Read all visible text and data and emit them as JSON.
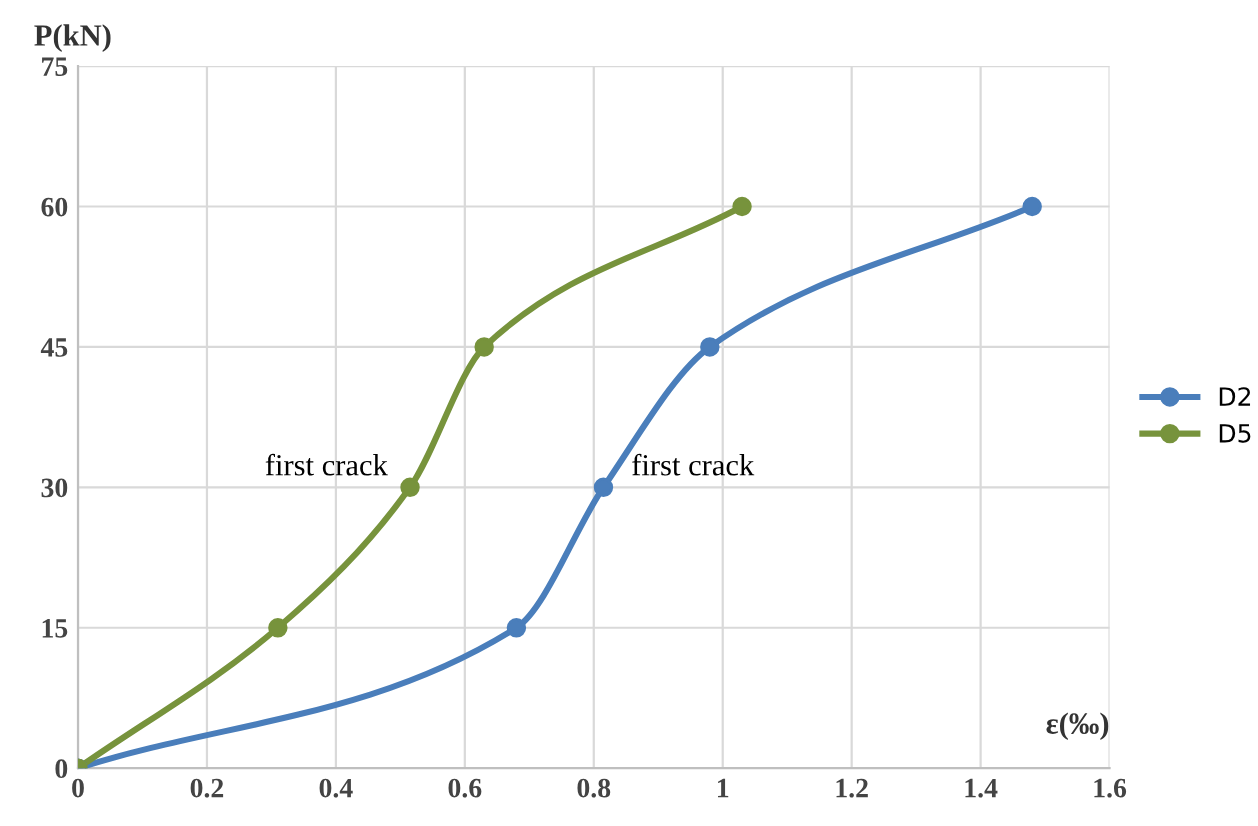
{
  "chart_data": {
    "type": "line",
    "xlabel": "ε(‰)",
    "ylabel": "P(kN)",
    "xlim": [
      0,
      1.6
    ],
    "xticks": [
      0,
      0.2,
      0.4,
      0.6,
      0.8,
      1,
      1.2,
      1.4,
      1.6
    ],
    "ylim": [
      0,
      75
    ],
    "yticks": [
      0,
      15,
      30,
      45,
      60,
      75
    ],
    "grid": true,
    "legend": "right",
    "marker": "circle",
    "line_style": "solid",
    "series": [
      {
        "name": "D2",
        "color": "#4a7ebb",
        "x": [
          0,
          0.68,
          0.815,
          0.98,
          1.48
        ],
        "values": [
          0,
          15,
          30,
          45,
          60
        ]
      },
      {
        "name": "D5",
        "color": "#77933c",
        "x": [
          0,
          0.31,
          0.515,
          0.63,
          1.03
        ],
        "values": [
          0,
          15,
          30,
          45,
          60
        ]
      }
    ],
    "annotations": [
      {
        "text": "first crack",
        "x": 0.515,
        "y": 30
      },
      {
        "text": "first crack",
        "x": 0.815,
        "y": 30
      }
    ]
  }
}
